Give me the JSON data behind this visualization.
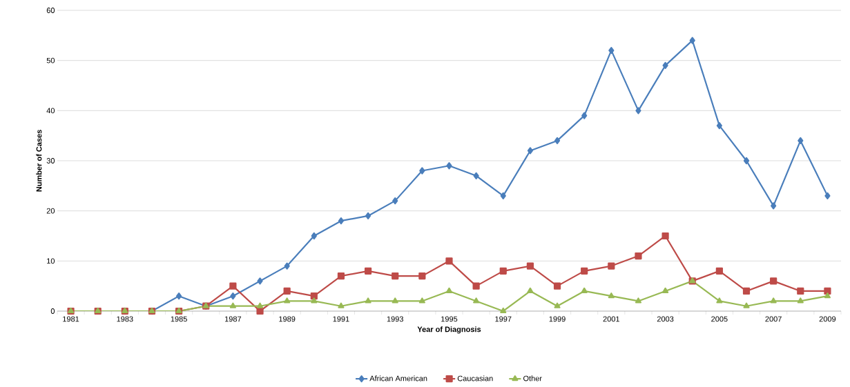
{
  "chart_data": {
    "type": "line",
    "xlabel": "Year of Diagnosis",
    "ylabel": "Number of Cases",
    "categories": [
      "1981",
      null,
      "1983",
      null,
      "1985",
      null,
      "1987",
      null,
      "1989",
      null,
      "1991",
      null,
      "1993",
      null,
      "1995",
      null,
      "1997",
      null,
      "1999",
      null,
      "2001",
      null,
      "2003",
      null,
      "2005",
      null,
      "2007",
      null,
      "2009"
    ],
    "series": [
      {
        "name": "African American",
        "color": "#4a7ebb",
        "marker": "diamond",
        "values": [
          null,
          null,
          0,
          0,
          3,
          1,
          3,
          6,
          9,
          15,
          18,
          19,
          22,
          28,
          29,
          27,
          23,
          32,
          34,
          39,
          52,
          40,
          49,
          54,
          37,
          30,
          21,
          34,
          23
        ]
      },
      {
        "name": "Caucasian",
        "color": "#be4b48",
        "marker": "square",
        "values": [
          0,
          0,
          0,
          0,
          0,
          1,
          5,
          0,
          4,
          3,
          7,
          8,
          7,
          7,
          10,
          5,
          8,
          9,
          5,
          8,
          9,
          11,
          15,
          6,
          8,
          4,
          6,
          4,
          4
        ]
      },
      {
        "name": "Other",
        "color": "#98b954",
        "marker": "triangle",
        "values": [
          0,
          0,
          0,
          0,
          0,
          1,
          1,
          1,
          2,
          2,
          1,
          2,
          2,
          2,
          4,
          2,
          0,
          4,
          1,
          4,
          3,
          2,
          4,
          6,
          2,
          1,
          2,
          2,
          3
        ]
      }
    ],
    "ylim": [
      0,
      60
    ],
    "yticks": [
      0,
      10,
      20,
      30,
      40,
      50,
      60
    ],
    "grid": "y",
    "legend": "bottom",
    "line_style": "solid"
  }
}
